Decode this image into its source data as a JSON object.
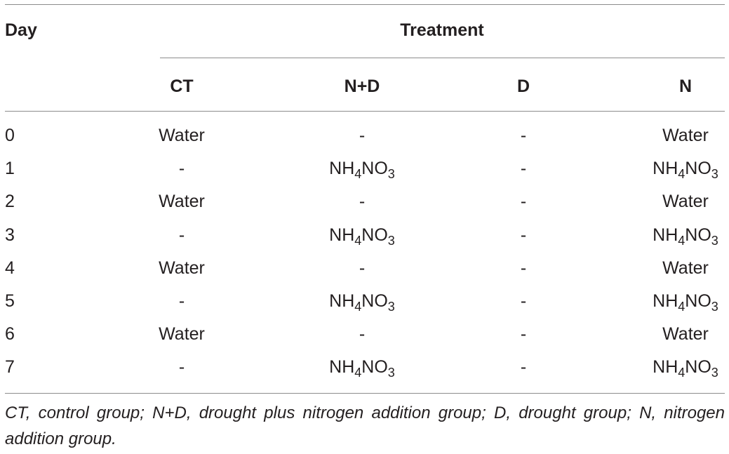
{
  "table": {
    "header": {
      "day": "Day",
      "group": "Treatment",
      "columns": [
        "CT",
        "N+D",
        "D",
        "N"
      ]
    },
    "compound": {
      "n": "NH",
      "n_sub": "4",
      "no": "NO",
      "no_sub": "3"
    },
    "rows": [
      {
        "day": "0",
        "cells": [
          "Water",
          "-",
          "-",
          "Water"
        ]
      },
      {
        "day": "1",
        "cells": [
          "-",
          "NH4NO3",
          "-",
          "NH4NO3"
        ]
      },
      {
        "day": "2",
        "cells": [
          "Water",
          "-",
          "-",
          "Water"
        ]
      },
      {
        "day": "3",
        "cells": [
          "-",
          "NH4NO3",
          "-",
          "NH4NO3"
        ]
      },
      {
        "day": "4",
        "cells": [
          "Water",
          "-",
          "-",
          "Water"
        ]
      },
      {
        "day": "5",
        "cells": [
          "-",
          "NH4NO3",
          "-",
          "NH4NO3"
        ]
      },
      {
        "day": "6",
        "cells": [
          "Water",
          "-",
          "-",
          "Water"
        ]
      },
      {
        "day": "7",
        "cells": [
          "-",
          "NH4NO3",
          "-",
          "NH4NO3"
        ]
      }
    ],
    "footnote": "CT, control group; N+D, drought plus nitrogen addition group; D, drought group; N, nitrogen addition group."
  }
}
